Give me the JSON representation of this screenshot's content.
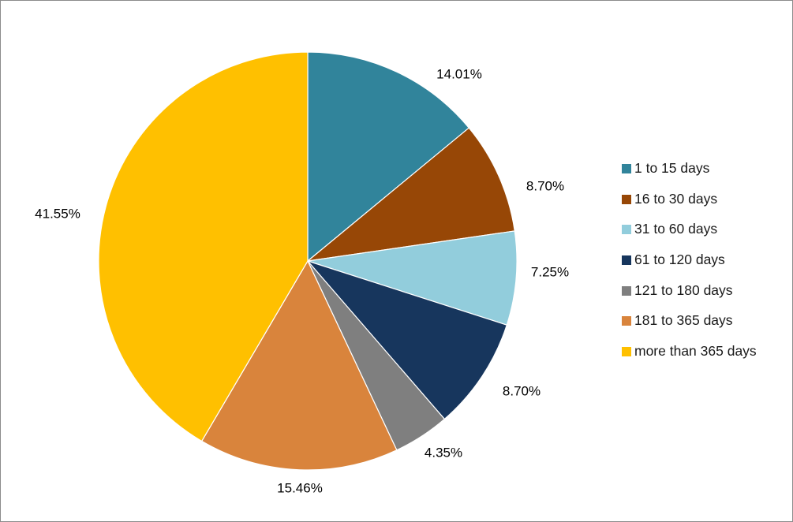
{
  "chart_data": {
    "type": "pie",
    "categories": [
      "1 to 15 days",
      "16 to 30 days",
      "31 to 60 days",
      "61 to 120 days",
      "121 to 180 days",
      "181 to 365 days",
      "more than 365 days"
    ],
    "values": [
      14.01,
      8.7,
      7.25,
      8.7,
      4.35,
      15.46,
      41.55
    ],
    "data_labels": [
      "14.01%",
      "8.70%",
      "7.25%",
      "8.70%",
      "4.35%",
      "15.46%",
      "41.55%"
    ],
    "colors": [
      "#31849B",
      "#974706",
      "#92CDDC",
      "#17365D",
      "#7F7F7F",
      "#D9843C",
      "#FFC000"
    ],
    "start_angle": "12 o'clock",
    "direction": "clockwise",
    "legend": "right",
    "title": ""
  }
}
